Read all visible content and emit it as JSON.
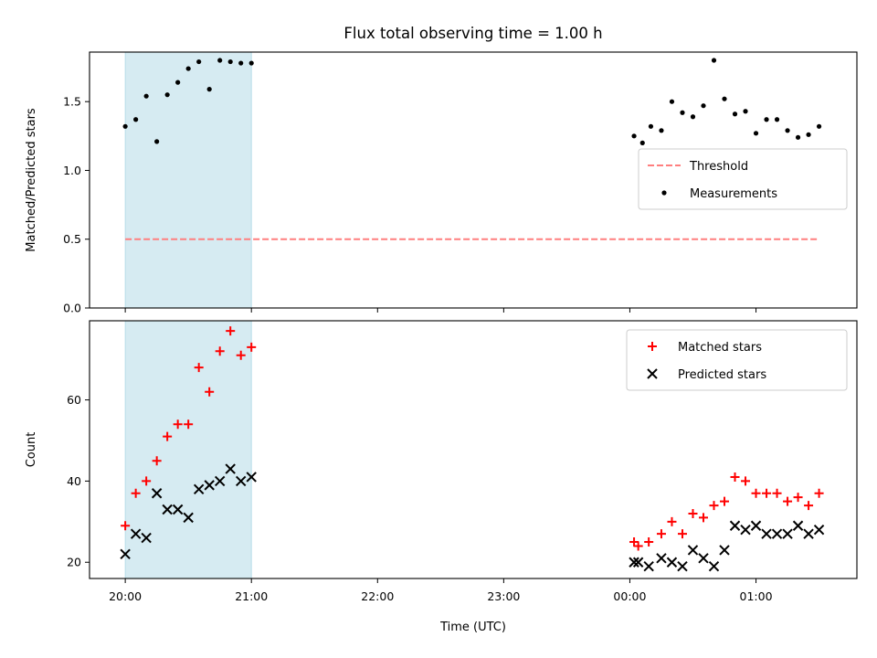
{
  "title": "Flux total observing time = 1.00 h",
  "xlabel": "Time (UTC)",
  "x_ticks": [
    "20:00",
    "21:00",
    "22:00",
    "23:00",
    "00:00",
    "01:00"
  ],
  "colors": {
    "shade": "#add8e6",
    "threshold": "#ff7f7f",
    "measurements": "#000000",
    "matched": "#ff0000",
    "predicted": "#000000"
  },
  "chart_data": [
    {
      "type": "scatter",
      "ylabel": "Matched/Predicted stars",
      "xlim": [
        "19:43",
        "01:48"
      ],
      "ylim": [
        0,
        1.86
      ],
      "y_ticks": [
        "0.0",
        "0.5",
        "1.0",
        "1.5"
      ],
      "shaded_interval": [
        "20:00",
        "21:00"
      ],
      "legend_position": "center-right",
      "series": [
        {
          "name": "Threshold",
          "kind": "dashed-line",
          "x": [
            "20:00",
            "01:30"
          ],
          "y": [
            0.5,
            0.5
          ]
        },
        {
          "name": "Measurements",
          "kind": "dot",
          "x": [
            "20:00",
            "20:05",
            "20:10",
            "20:15",
            "20:20",
            "20:25",
            "20:30",
            "20:35",
            "20:40",
            "20:45",
            "20:50",
            "20:55",
            "21:00",
            "00:02",
            "00:06",
            "00:10",
            "00:15",
            "00:20",
            "00:25",
            "00:30",
            "00:35",
            "00:40",
            "00:45",
            "00:50",
            "00:55",
            "01:00",
            "01:05",
            "01:10",
            "01:15",
            "01:20",
            "01:25",
            "01:30"
          ],
          "y": [
            1.32,
            1.37,
            1.54,
            1.21,
            1.55,
            1.64,
            1.74,
            1.79,
            1.59,
            1.8,
            1.79,
            1.78,
            1.78,
            1.25,
            1.2,
            1.32,
            1.29,
            1.5,
            1.42,
            1.39,
            1.47,
            1.8,
            1.52,
            1.41,
            1.43,
            1.27,
            1.37,
            1.37,
            1.29,
            1.24,
            1.26,
            1.32
          ]
        }
      ]
    },
    {
      "type": "scatter",
      "ylabel": "Count",
      "xlim": [
        "19:43",
        "01:48"
      ],
      "ylim": [
        16,
        79.5
      ],
      "y_ticks": [
        "20",
        "40",
        "60"
      ],
      "shaded_interval": [
        "20:00",
        "21:00"
      ],
      "legend_position": "top-right",
      "series": [
        {
          "name": "Matched stars",
          "kind": "plus",
          "x": [
            "20:00",
            "20:05",
            "20:10",
            "20:15",
            "20:20",
            "20:25",
            "20:30",
            "20:35",
            "20:40",
            "20:45",
            "20:50",
            "20:55",
            "21:00",
            "00:02",
            "00:04",
            "00:09",
            "00:15",
            "00:20",
            "00:25",
            "00:30",
            "00:35",
            "00:40",
            "00:45",
            "00:50",
            "00:55",
            "01:00",
            "01:05",
            "01:10",
            "01:15",
            "01:20",
            "01:25",
            "01:30"
          ],
          "y": [
            29,
            37,
            40,
            45,
            51,
            54,
            54,
            68,
            62,
            72,
            77,
            71,
            73,
            25,
            24,
            25,
            27,
            30,
            27,
            32,
            31,
            34,
            35,
            41,
            40,
            37,
            37,
            37,
            35,
            36,
            34,
            37
          ]
        },
        {
          "name": "Predicted stars",
          "kind": "x",
          "x": [
            "20:00",
            "20:05",
            "20:10",
            "20:15",
            "20:20",
            "20:25",
            "20:30",
            "20:35",
            "20:40",
            "20:45",
            "20:50",
            "20:55",
            "21:00",
            "00:02",
            "00:04",
            "00:09",
            "00:15",
            "00:20",
            "00:25",
            "00:30",
            "00:35",
            "00:40",
            "00:45",
            "00:50",
            "00:55",
            "01:00",
            "01:05",
            "01:10",
            "01:15",
            "01:20",
            "01:25",
            "01:30"
          ],
          "y": [
            22,
            27,
            26,
            37,
            33,
            33,
            31,
            38,
            39,
            40,
            43,
            40,
            41,
            20,
            20,
            19,
            21,
            20,
            19,
            23,
            21,
            19,
            23,
            29,
            28,
            29,
            27,
            27,
            27,
            29,
            27,
            28
          ]
        }
      ]
    }
  ]
}
